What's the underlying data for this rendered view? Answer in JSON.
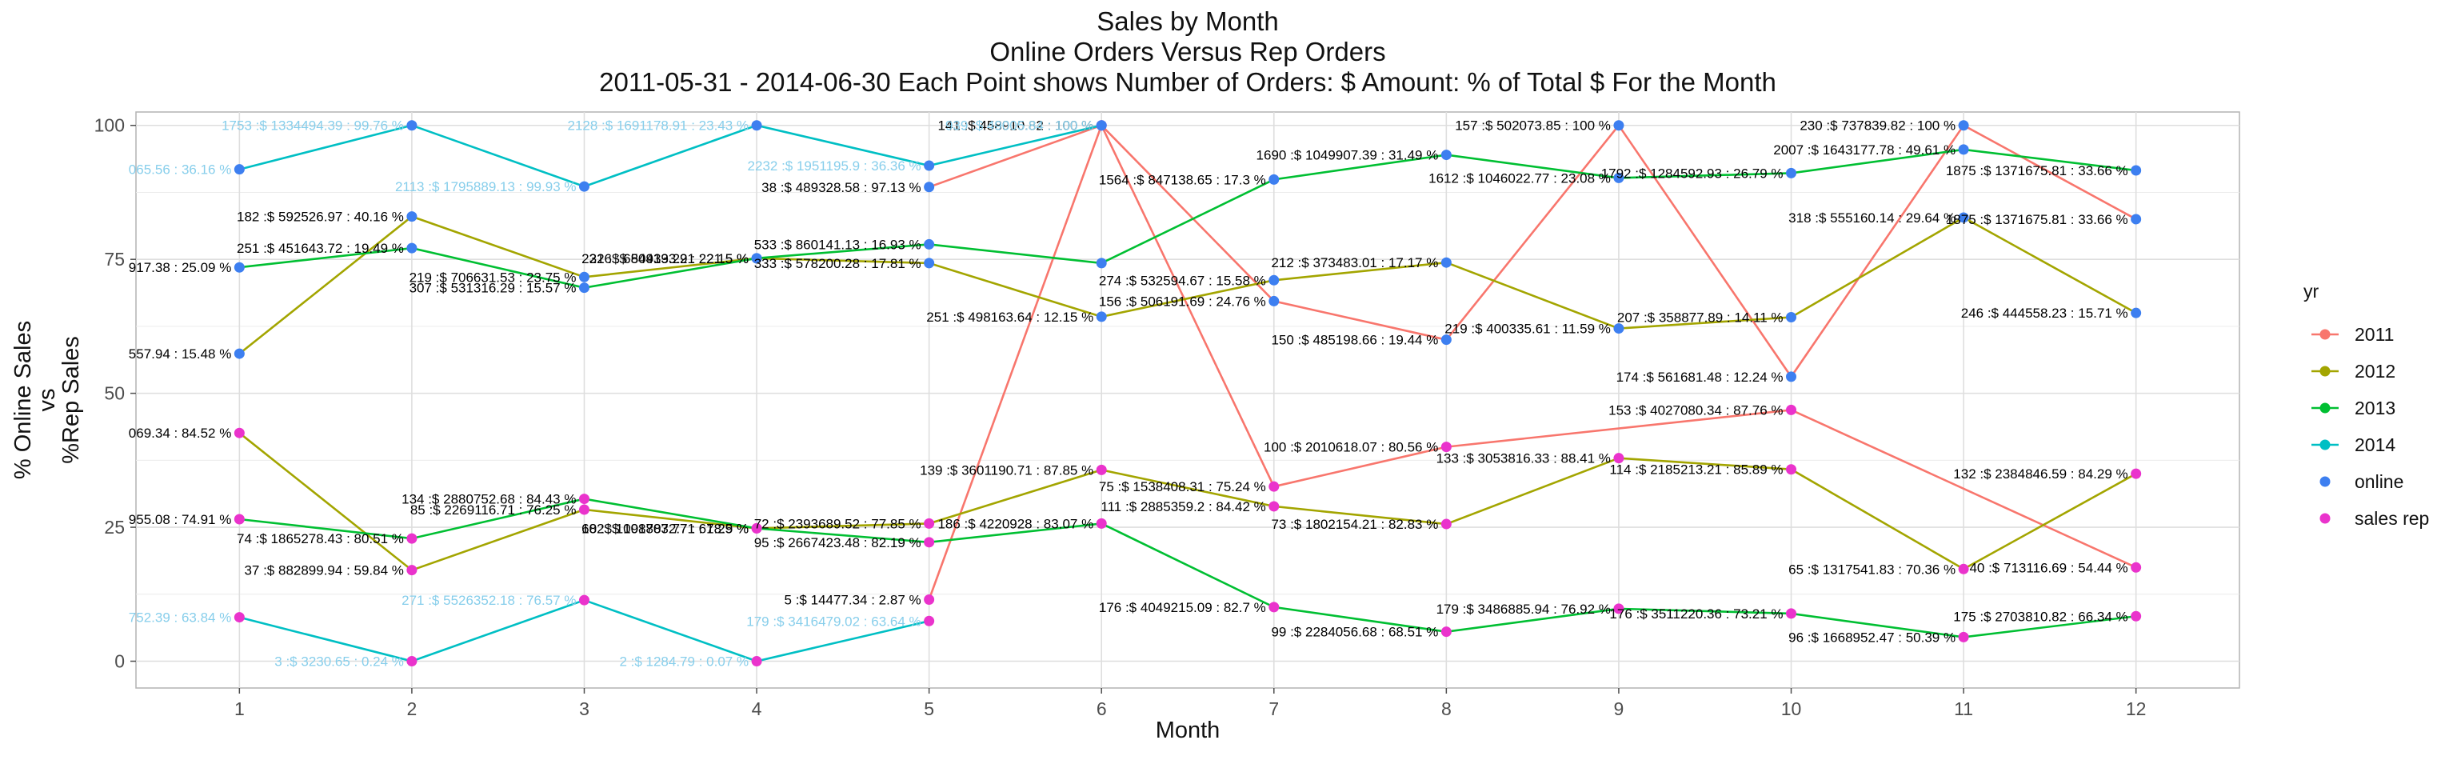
{
  "chart_data": {
    "type": "line",
    "title_lines": [
      "Sales by Month",
      "Online Orders Versus Rep Orders",
      "2011-05-31  -  2014-06-30   Each Point shows Number of Orders: $ Amount: % of Total $ For the Month"
    ],
    "xlabel": "Month",
    "ylabel_lines": [
      "% Online Sales",
      "vs",
      "%Rep Sales"
    ],
    "x_ticks": [
      "1",
      "2",
      "3",
      "4",
      "5",
      "6",
      "7",
      "8",
      "9",
      "10",
      "11",
      "12"
    ],
    "y_ticks": [
      "0",
      "25",
      "50",
      "75",
      "100"
    ],
    "xlim": [
      0.4,
      12.6
    ],
    "ylim": [
      -5,
      102.5
    ],
    "grid": true,
    "legend_title": "yr",
    "legend_placement": "right",
    "legend": [
      {
        "label": "2011",
        "color": "#F8766D",
        "kind": "line"
      },
      {
        "label": "2012",
        "color": "#A3A500",
        "kind": "line"
      },
      {
        "label": "2013",
        "color": "#00BF32",
        "kind": "line"
      },
      {
        "label": "2014",
        "color": "#00BFC4",
        "kind": "line"
      },
      {
        "label": "online",
        "color": "#3D7FF0",
        "kind": "point"
      },
      {
        "label": "sales rep",
        "color": "#EA33CC",
        "kind": "point"
      }
    ],
    "series": [
      {
        "id": "2011-online",
        "year": "2011",
        "type": "online",
        "color": "#F8766D",
        "points": [
          {
            "x": 5,
            "y": 88.5,
            "label": "38 :$ 489328.58 : 97.13 %"
          },
          {
            "x": 6,
            "y": 100,
            "label": "141 :$ 458910.82 : 100 %"
          },
          {
            "x": 7,
            "y": 67.2,
            "label": "156 :$ 506191.69 : 24.76 %"
          },
          {
            "x": 8,
            "y": 60,
            "label": "150 :$ 485198.66 : 19.44 %"
          },
          {
            "x": 9,
            "y": 100,
            "label": "157 :$ 502073.85 : 100 %"
          },
          {
            "x": 10,
            "y": 53.1,
            "label": "174 :$ 561681.48 : 12.24 %"
          },
          {
            "x": 11,
            "y": 100,
            "label": "230 :$ 737839.82 : 100 %"
          },
          {
            "x": 12,
            "y": 82.5,
            "label": "1875 :$ 1371675.81 : 33.66 %"
          }
        ]
      },
      {
        "id": "2011-rep",
        "year": "2011",
        "type": "rep",
        "color": "#F8766D",
        "points": [
          {
            "x": 5,
            "y": 11.5,
            "label": "5 :$ 14477.34 : 2.87 %"
          },
          {
            "x": 6,
            "y": 100,
            "label": ""
          },
          {
            "x": 7,
            "y": 32.6,
            "label": "75 :$ 1538408.31 : 75.24 %"
          },
          {
            "x": 8,
            "y": 40,
            "label": "100 :$ 2010618.07 : 80.56 %"
          },
          {
            "x": 10,
            "y": 46.9,
            "label": "153 :$ 4027080.34 : 87.76 %"
          },
          {
            "x": 12,
            "y": 17.5,
            "label": "40 :$ 713116.69 : 54.44 %"
          }
        ]
      },
      {
        "id": "2012-online",
        "year": "2012",
        "type": "online",
        "color": "#A3A500",
        "points": [
          {
            "x": 1,
            "y": 57.4,
            "label": "557.94 : 15.48 %"
          },
          {
            "x": 2,
            "y": 83,
            "label": "182 :$ 592526.97 : 40.16 %"
          },
          {
            "x": 3,
            "y": 71.7,
            "label": "219 :$ 706631.53 : 23.75 %"
          },
          {
            "x": 4,
            "y": 75.2,
            "label": "221 :$ 680913.29 : 22.15 %"
          },
          {
            "x": 5,
            "y": 74.3,
            "label": "333 :$ 578200.28 : 17.81 %"
          },
          {
            "x": 6,
            "y": 64.3,
            "label": "251 :$ 498163.64 : 12.15 %"
          },
          {
            "x": 7,
            "y": 71.1,
            "label": "274 :$ 532594.67 : 15.58 %"
          },
          {
            "x": 8,
            "y": 74.4,
            "label": "212 :$ 373483.01 : 17.17 %"
          },
          {
            "x": 9,
            "y": 62.1,
            "label": "219 :$ 400335.61 : 11.59 %"
          },
          {
            "x": 10,
            "y": 64.2,
            "label": "207 :$ 358877.89 : 14.11 %"
          },
          {
            "x": 11,
            "y": 82.8,
            "label": "318 :$ 555160.14 : 29.64 %"
          },
          {
            "x": 12,
            "y": 65,
            "label": "246 :$ 444558.23 : 15.71 %"
          }
        ]
      },
      {
        "id": "2012-rep",
        "year": "2012",
        "type": "rep",
        "color": "#A3A500",
        "points": [
          {
            "x": 1,
            "y": 42.6,
            "label": "069.34 : 84.52 %"
          },
          {
            "x": 2,
            "y": 17,
            "label": "37 :$ 882899.94 : 59.84 %"
          },
          {
            "x": 3,
            "y": 28.3,
            "label": "85 :$ 2269116.71 : 76.25 %"
          },
          {
            "x": 4,
            "y": 24.8,
            "label": "68 :$ 1001803.77 : 61.29 %"
          },
          {
            "x": 5,
            "y": 25.7,
            "label": "72 :$ 2393689.52 : 77.85 %"
          },
          {
            "x": 6,
            "y": 35.7,
            "label": "139 :$ 3601190.71 : 87.85 %"
          },
          {
            "x": 7,
            "y": 28.9,
            "label": "111 :$ 2885359.2 : 84.42 %"
          },
          {
            "x": 8,
            "y": 25.6,
            "label": "73 :$ 1802154.21 : 82.83 %"
          },
          {
            "x": 9,
            "y": 37.9,
            "label": "133 :$ 3053816.33 : 88.41 %"
          },
          {
            "x": 10,
            "y": 35.8,
            "label": "114 :$ 2185213.21 : 85.89 %"
          },
          {
            "x": 11,
            "y": 17.2,
            "label": "65 :$ 1317541.83 : 70.36 %"
          },
          {
            "x": 12,
            "y": 35,
            "label": "132 :$ 2384846.59 : 84.29 %"
          }
        ]
      },
      {
        "id": "2013-online",
        "year": "2013",
        "type": "online",
        "color": "#00BF32",
        "points": [
          {
            "x": 1,
            "y": 73.5,
            "label": "917.38 : 25.09 %"
          },
          {
            "x": 2,
            "y": 77.1,
            "label": "251 :$ 451643.72 : 19.49 %"
          },
          {
            "x": 3,
            "y": 69.7,
            "label": "307 :$ 531316.29 : 15.57 %"
          },
          {
            "x": 4,
            "y": 75.2,
            "label": "326 :$ 544393.21 : 21.5 %"
          },
          {
            "x": 5,
            "y": 77.8,
            "label": "533 :$ 860141.13 : 16.93 %"
          },
          {
            "x": 6,
            "y": 74.3,
            "label": ""
          },
          {
            "x": 7,
            "y": 89.9,
            "label": "1564 :$ 847138.65 : 17.3 %"
          },
          {
            "x": 8,
            "y": 94.5,
            "label": "1690 :$ 1049907.39 : 31.49 %"
          },
          {
            "x": 9,
            "y": 90.2,
            "label": "1612 :$ 1046022.77 : 23.08 %"
          },
          {
            "x": 10,
            "y": 91.1,
            "label": "1792 :$ 1284592.93 : 26.79 %"
          },
          {
            "x": 11,
            "y": 95.5,
            "label": "2007 :$ 1643177.78 : 49.61 %"
          },
          {
            "x": 12,
            "y": 91.6,
            "label": "1875 :$ 1371675.81 : 33.66 %"
          }
        ]
      },
      {
        "id": "2013-rep",
        "year": "2013",
        "type": "rep",
        "color": "#00BF32",
        "points": [
          {
            "x": 1,
            "y": 26.5,
            "label": "955.08 : 74.91 %"
          },
          {
            "x": 2,
            "y": 22.9,
            "label": "74 :$ 1865278.43 : 80.51 %"
          },
          {
            "x": 3,
            "y": 30.3,
            "label": "134 :$ 2880752.68 : 84.43 %"
          },
          {
            "x": 4,
            "y": 24.8,
            "label": "102 :$ 1987872.71 : 78.5 %"
          },
          {
            "x": 5,
            "y": 22.2,
            "label": "95 :$ 2667423.48 : 82.19 %"
          },
          {
            "x": 6,
            "y": 25.7,
            "label": "186 :$ 4220928 : 83.07 %"
          },
          {
            "x": 7,
            "y": 10.1,
            "label": "176 :$ 4049215.09 : 82.7 %"
          },
          {
            "x": 8,
            "y": 5.5,
            "label": "99 :$ 2284056.68 : 68.51 %"
          },
          {
            "x": 9,
            "y": 9.8,
            "label": "179 :$ 3486885.94 : 76.92 %"
          },
          {
            "x": 10,
            "y": 8.9,
            "label": "176 :$ 3511220.36 : 73.21 %"
          },
          {
            "x": 11,
            "y": 4.5,
            "label": "96 :$ 1668952.47 : 50.39 %"
          },
          {
            "x": 12,
            "y": 8.4,
            "label": "175 :$ 2703810.82 : 66.34 %"
          }
        ]
      },
      {
        "id": "2014-online",
        "year": "2014",
        "type": "online",
        "color": "#00BFC4",
        "points": [
          {
            "x": 1,
            "y": 91.8,
            "label": "065.56 : 36.16 %"
          },
          {
            "x": 2,
            "y": 100,
            "label": "1753 :$ 1334494.39 : 99.76 %"
          },
          {
            "x": 3,
            "y": 88.6,
            "label": "2113 :$ 1795889.13 : 99.93 %"
          },
          {
            "x": 4,
            "y": 100,
            "label": "2128 :$ 1691178.91 : 23.43 %"
          },
          {
            "x": 5,
            "y": 92.5,
            "label": "2232 :$ 1951195.9 : 36.36 %"
          },
          {
            "x": 6,
            "y": 100,
            "label": "939 :$ 49005.84 : 100 %"
          }
        ]
      },
      {
        "id": "2014-rep",
        "year": "2014",
        "type": "rep",
        "color": "#00BFC4",
        "points": [
          {
            "x": 1,
            "y": 8.2,
            "label": "752.39 : 63.84 %"
          },
          {
            "x": 2,
            "y": 0,
            "label": "3 :$ 3230.65 : 0.24 %"
          },
          {
            "x": 3,
            "y": 11.4,
            "label": "271 :$ 5526352.18 : 76.57 %"
          },
          {
            "x": 4,
            "y": 0,
            "label": "2 :$ 1284.79 : 0.07 %"
          },
          {
            "x": 5,
            "y": 7.5,
            "label": "179 :$ 3416479.02 : 63.64 %"
          }
        ]
      }
    ]
  }
}
